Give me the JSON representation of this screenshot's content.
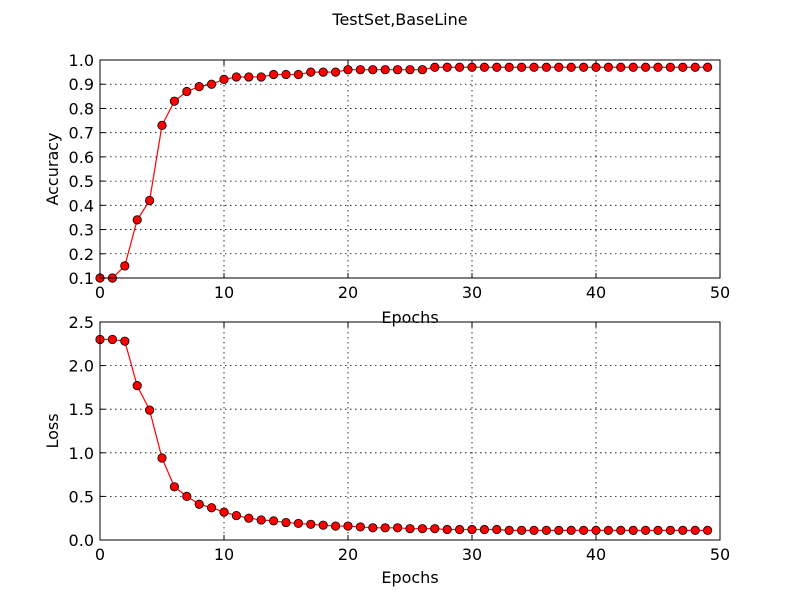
{
  "figure": {
    "suptitle": "TestSet,BaseLine"
  },
  "chart_data": [
    {
      "type": "line",
      "ylabel": "Accuracy",
      "xlabel": "Epochs",
      "xlim": [
        0,
        50
      ],
      "ylim": [
        0.1,
        1.0
      ],
      "xticks": [
        0,
        10,
        20,
        30,
        40,
        50
      ],
      "yticks": [
        0.1,
        0.2,
        0.3,
        0.4,
        0.5,
        0.6,
        0.7,
        0.8,
        0.9,
        1.0
      ],
      "xtick_labels": [
        "0",
        "10",
        "20",
        "30",
        "40",
        "50"
      ],
      "ytick_labels": [
        "0.1",
        "0.2",
        "0.3",
        "0.4",
        "0.5",
        "0.6",
        "0.7",
        "0.8",
        "0.9",
        "1.0"
      ],
      "grid": true,
      "color": "#ff0000",
      "marker": "circle",
      "x": [
        0,
        1,
        2,
        3,
        4,
        5,
        6,
        7,
        8,
        9,
        10,
        11,
        12,
        13,
        14,
        15,
        16,
        17,
        18,
        19,
        20,
        21,
        22,
        23,
        24,
        25,
        26,
        27,
        28,
        29,
        30,
        31,
        32,
        33,
        34,
        35,
        36,
        37,
        38,
        39,
        40,
        41,
        42,
        43,
        44,
        45,
        46,
        47,
        48,
        49
      ],
      "y": [
        0.1,
        0.1,
        0.15,
        0.34,
        0.42,
        0.73,
        0.83,
        0.87,
        0.89,
        0.9,
        0.92,
        0.93,
        0.93,
        0.93,
        0.94,
        0.94,
        0.94,
        0.95,
        0.95,
        0.95,
        0.96,
        0.96,
        0.96,
        0.96,
        0.96,
        0.96,
        0.96,
        0.97,
        0.97,
        0.97,
        0.97,
        0.97,
        0.97,
        0.97,
        0.97,
        0.97,
        0.97,
        0.97,
        0.97,
        0.97,
        0.97,
        0.97,
        0.97,
        0.97,
        0.97,
        0.97,
        0.97,
        0.97,
        0.97,
        0.97
      ]
    },
    {
      "type": "line",
      "ylabel": "Loss",
      "xlabel": "Epochs",
      "xlim": [
        0,
        50
      ],
      "ylim": [
        0.0,
        2.5
      ],
      "xticks": [
        0,
        10,
        20,
        30,
        40,
        50
      ],
      "yticks": [
        0.0,
        0.5,
        1.0,
        1.5,
        2.0,
        2.5
      ],
      "xtick_labels": [
        "0",
        "10",
        "20",
        "30",
        "40",
        "50"
      ],
      "ytick_labels": [
        "0.0",
        "0.5",
        "1.0",
        "1.5",
        "2.0",
        "2.5"
      ],
      "grid": true,
      "color": "#ff0000",
      "marker": "circle",
      "x": [
        0,
        1,
        2,
        3,
        4,
        5,
        6,
        7,
        8,
        9,
        10,
        11,
        12,
        13,
        14,
        15,
        16,
        17,
        18,
        19,
        20,
        21,
        22,
        23,
        24,
        25,
        26,
        27,
        28,
        29,
        30,
        31,
        32,
        33,
        34,
        35,
        36,
        37,
        38,
        39,
        40,
        41,
        42,
        43,
        44,
        45,
        46,
        47,
        48,
        49
      ],
      "y": [
        2.3,
        2.3,
        2.28,
        1.77,
        1.49,
        0.94,
        0.61,
        0.5,
        0.41,
        0.37,
        0.32,
        0.28,
        0.25,
        0.23,
        0.22,
        0.2,
        0.19,
        0.18,
        0.17,
        0.16,
        0.16,
        0.15,
        0.14,
        0.14,
        0.14,
        0.13,
        0.13,
        0.13,
        0.12,
        0.12,
        0.12,
        0.12,
        0.12,
        0.11,
        0.11,
        0.11,
        0.11,
        0.11,
        0.11,
        0.11,
        0.11,
        0.11,
        0.11,
        0.11,
        0.11,
        0.11,
        0.11,
        0.11,
        0.11,
        0.11
      ]
    }
  ]
}
